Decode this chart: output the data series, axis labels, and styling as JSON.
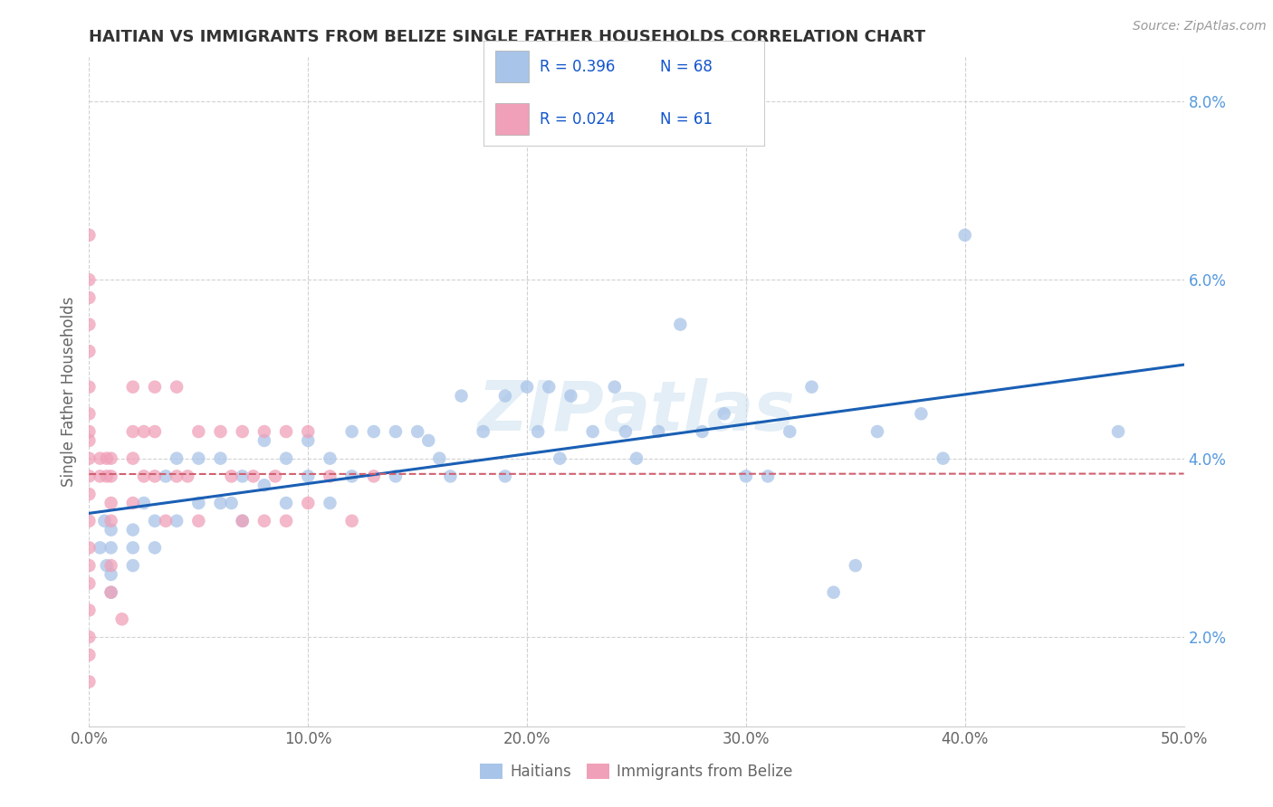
{
  "title": "HAITIAN VS IMMIGRANTS FROM BELIZE SINGLE FATHER HOUSEHOLDS CORRELATION CHART",
  "source": "Source: ZipAtlas.com",
  "ylabel": "Single Father Households",
  "xlim": [
    0.0,
    0.5
  ],
  "ylim": [
    0.01,
    0.085
  ],
  "xticks": [
    0.0,
    0.1,
    0.2,
    0.3,
    0.4,
    0.5
  ],
  "xticklabels": [
    "0.0%",
    "10.0%",
    "20.0%",
    "30.0%",
    "40.0%",
    "50.0%"
  ],
  "yticks": [
    0.02,
    0.04,
    0.06,
    0.08
  ],
  "yticklabels": [
    "2.0%",
    "4.0%",
    "6.0%",
    "8.0%"
  ],
  "R_haitian": 0.396,
  "N_haitian": 68,
  "R_belize": 0.024,
  "N_belize": 61,
  "haitian_color": "#a8c4e8",
  "belize_color": "#f0a0b8",
  "haitian_line_color": "#1a5fb4",
  "belize_line_color": "#d06070",
  "watermark": "ZIPatlas",
  "haitian_x": [
    0.005,
    0.007,
    0.008,
    0.01,
    0.01,
    0.01,
    0.01,
    0.02,
    0.02,
    0.02,
    0.025,
    0.03,
    0.03,
    0.035,
    0.04,
    0.04,
    0.05,
    0.05,
    0.06,
    0.06,
    0.065,
    0.07,
    0.07,
    0.08,
    0.08,
    0.09,
    0.09,
    0.1,
    0.1,
    0.11,
    0.11,
    0.12,
    0.12,
    0.13,
    0.14,
    0.14,
    0.15,
    0.155,
    0.16,
    0.165,
    0.17,
    0.18,
    0.19,
    0.19,
    0.2,
    0.205,
    0.21,
    0.215,
    0.22,
    0.23,
    0.24,
    0.245,
    0.25,
    0.26,
    0.27,
    0.28,
    0.29,
    0.3,
    0.31,
    0.32,
    0.33,
    0.34,
    0.35,
    0.36,
    0.38,
    0.39,
    0.4,
    0.47
  ],
  "haitian_y": [
    0.03,
    0.033,
    0.028,
    0.032,
    0.027,
    0.025,
    0.03,
    0.03,
    0.032,
    0.028,
    0.035,
    0.033,
    0.03,
    0.038,
    0.033,
    0.04,
    0.04,
    0.035,
    0.04,
    0.035,
    0.035,
    0.038,
    0.033,
    0.042,
    0.037,
    0.04,
    0.035,
    0.042,
    0.038,
    0.04,
    0.035,
    0.043,
    0.038,
    0.043,
    0.043,
    0.038,
    0.043,
    0.042,
    0.04,
    0.038,
    0.047,
    0.043,
    0.047,
    0.038,
    0.048,
    0.043,
    0.048,
    0.04,
    0.047,
    0.043,
    0.048,
    0.043,
    0.04,
    0.043,
    0.055,
    0.043,
    0.045,
    0.038,
    0.038,
    0.043,
    0.048,
    0.025,
    0.028,
    0.043,
    0.045,
    0.04,
    0.065,
    0.043
  ],
  "belize_x": [
    0.0,
    0.0,
    0.0,
    0.0,
    0.0,
    0.0,
    0.0,
    0.0,
    0.0,
    0.0,
    0.0,
    0.0,
    0.0,
    0.0,
    0.0,
    0.0,
    0.0,
    0.0,
    0.0,
    0.0,
    0.005,
    0.005,
    0.008,
    0.008,
    0.01,
    0.01,
    0.01,
    0.01,
    0.01,
    0.01,
    0.015,
    0.02,
    0.02,
    0.02,
    0.02,
    0.025,
    0.025,
    0.03,
    0.03,
    0.03,
    0.035,
    0.04,
    0.04,
    0.045,
    0.05,
    0.05,
    0.06,
    0.065,
    0.07,
    0.07,
    0.075,
    0.08,
    0.08,
    0.085,
    0.09,
    0.09,
    0.1,
    0.1,
    0.11,
    0.12,
    0.13
  ],
  "belize_y": [
    0.065,
    0.06,
    0.058,
    0.055,
    0.052,
    0.048,
    0.045,
    0.043,
    0.042,
    0.04,
    0.038,
    0.036,
    0.033,
    0.03,
    0.028,
    0.026,
    0.023,
    0.02,
    0.018,
    0.015,
    0.04,
    0.038,
    0.04,
    0.038,
    0.04,
    0.038,
    0.035,
    0.033,
    0.028,
    0.025,
    0.022,
    0.048,
    0.043,
    0.04,
    0.035,
    0.043,
    0.038,
    0.048,
    0.043,
    0.038,
    0.033,
    0.048,
    0.038,
    0.038,
    0.043,
    0.033,
    0.043,
    0.038,
    0.043,
    0.033,
    0.038,
    0.043,
    0.033,
    0.038,
    0.043,
    0.033,
    0.043,
    0.035,
    0.038,
    0.033,
    0.038
  ],
  "background_color": "#ffffff",
  "grid_color": "#cccccc",
  "title_color": "#333333",
  "axis_color": "#666666",
  "tick_color": "#5599dd",
  "legend_box_color_haitian": "#a8c4e8",
  "legend_box_color_belize": "#f0a0b8",
  "legend_text_color": "#1155cc"
}
